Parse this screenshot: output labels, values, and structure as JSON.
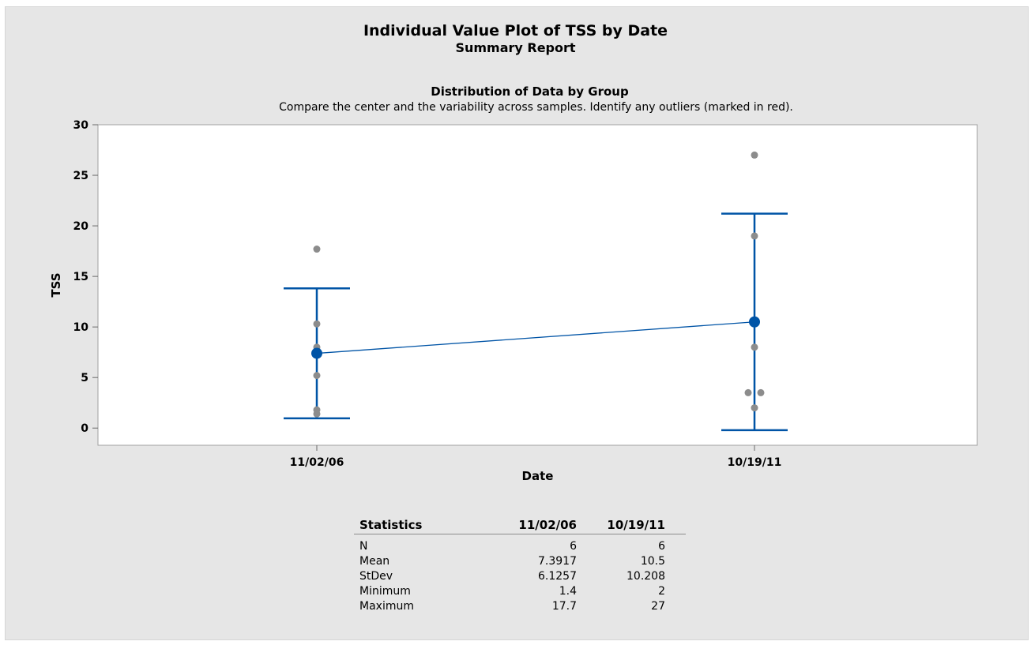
{
  "header": {
    "title": "Individual Value Plot of TSS by Date",
    "subtitle": "Summary Report"
  },
  "section": {
    "title": "Distribution of Data by Group",
    "subtitle": "Compare the center and the variability across samples. Identify any outliers (marked in red)."
  },
  "colors": {
    "panel_background": "#e6e6e6",
    "plot_background": "#ffffff",
    "point": "#8c8c8c",
    "mean_and_interval": "#0054a6"
  },
  "chart_data": {
    "type": "scatter",
    "title": "Distribution of Data by Group",
    "xlabel": "Date",
    "ylabel": "TSS",
    "categories": [
      "11/02/06",
      "10/19/11"
    ],
    "ylim": [
      -1.7,
      30
    ],
    "yticks": [
      0,
      5,
      10,
      15,
      20,
      25,
      30
    ],
    "grid": false,
    "groups": [
      {
        "category": "11/02/06",
        "points": [
          1.4,
          1.8,
          5.2,
          8.0,
          10.3,
          17.7
        ],
        "mean": 7.3917,
        "interval": [
          0.96,
          13.82
        ]
      },
      {
        "category": "10/19/11",
        "points": [
          2.0,
          3.5,
          3.5,
          8.0,
          19.0,
          27.0
        ],
        "mean": 10.5,
        "interval": [
          -0.21,
          21.21
        ]
      }
    ],
    "mean_line": true
  },
  "statistics": {
    "headers": [
      "Statistics",
      "11/02/06",
      "10/19/11"
    ],
    "rows": [
      [
        "N",
        "6",
        "6"
      ],
      [
        "Mean",
        "7.3917",
        "10.5"
      ],
      [
        "StDev",
        "6.1257",
        "10.208"
      ],
      [
        "Minimum",
        "1.4",
        "2"
      ],
      [
        "Maximum",
        "17.7",
        "27"
      ]
    ]
  }
}
